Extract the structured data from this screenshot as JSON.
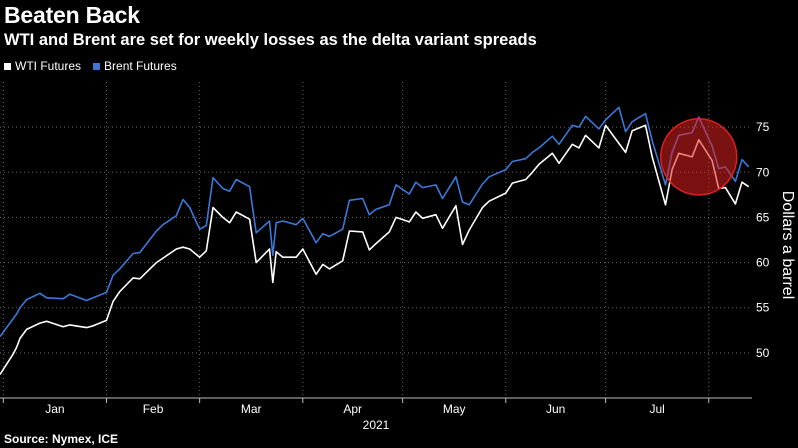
{
  "header": {
    "title": "Beaten Back",
    "subtitle": "WTI and Brent are set for weekly losses as the delta variant spreads"
  },
  "footer": {
    "source": "Source: Nymex, ICE"
  },
  "colors": {
    "wti": "#ffffff",
    "brent": "#3b78d8",
    "background": "#000000",
    "highlight": "#e02020"
  },
  "chart_data": {
    "type": "line",
    "title": "Beaten Back",
    "subtitle": "WTI and Brent are set for weekly losses as the delta variant spreads",
    "ylabel": "Dollars a barrel",
    "xlabel": "2021",
    "ylim": [
      45,
      80
    ],
    "yticks": [
      50,
      55,
      60,
      65,
      70,
      75
    ],
    "x_months": [
      "Jan",
      "Feb",
      "Mar",
      "Apr",
      "May",
      "Jun",
      "Jul"
    ],
    "grid": true,
    "legend_position": "top-left",
    "y_axis_side": "right",
    "highlight": "circle around late-July losses",
    "series": [
      {
        "name": "WTI Futures",
        "color": "#ffffff",
        "x": [
          "2020-12-31",
          "2021-01-04",
          "2021-01-05",
          "2021-01-06",
          "2021-01-08",
          "2021-01-12",
          "2021-01-14",
          "2021-01-19",
          "2021-01-21",
          "2021-01-26",
          "2021-01-28",
          "2021-02-01",
          "2021-02-03",
          "2021-02-05",
          "2021-02-09",
          "2021-02-11",
          "2021-02-16",
          "2021-02-18",
          "2021-02-22",
          "2021-02-24",
          "2021-02-26",
          "2021-03-01",
          "2021-03-03",
          "2021-03-05",
          "2021-03-08",
          "2021-03-10",
          "2021-03-12",
          "2021-03-16",
          "2021-03-18",
          "2021-03-22",
          "2021-03-23",
          "2021-03-24",
          "2021-03-26",
          "2021-03-30",
          "2021-04-01",
          "2021-04-05",
          "2021-04-07",
          "2021-04-09",
          "2021-04-13",
          "2021-04-15",
          "2021-04-19",
          "2021-04-21",
          "2021-04-23",
          "2021-04-27",
          "2021-04-29",
          "2021-05-03",
          "2021-05-05",
          "2021-05-07",
          "2021-05-11",
          "2021-05-13",
          "2021-05-17",
          "2021-05-19",
          "2021-05-21",
          "2021-05-25",
          "2021-05-27",
          "2021-06-01",
          "2021-06-03",
          "2021-06-07",
          "2021-06-09",
          "2021-06-11",
          "2021-06-15",
          "2021-06-17",
          "2021-06-21",
          "2021-06-23",
          "2021-06-25",
          "2021-06-29",
          "2021-07-01",
          "2021-07-05",
          "2021-07-07",
          "2021-07-09",
          "2021-07-13",
          "2021-07-15",
          "2021-07-19",
          "2021-07-21",
          "2021-07-23",
          "2021-07-27",
          "2021-07-29",
          "2021-08-02",
          "2021-08-04",
          "2021-08-06",
          "2021-08-09",
          "2021-08-11",
          "2021-08-13"
        ],
        "values": [
          47.6,
          49.9,
          50.6,
          51.6,
          52.6,
          53.3,
          53.5,
          52.9,
          53.1,
          52.8,
          53.0,
          53.6,
          55.7,
          56.8,
          58.3,
          58.2,
          60.0,
          60.5,
          61.5,
          61.7,
          61.5,
          60.6,
          61.3,
          66.1,
          65.0,
          64.4,
          65.6,
          64.8,
          60.0,
          61.5,
          57.8,
          61.2,
          60.6,
          60.6,
          61.5,
          58.7,
          59.8,
          59.3,
          60.2,
          63.5,
          63.4,
          61.4,
          62.1,
          63.4,
          65.0,
          64.5,
          65.6,
          64.9,
          65.3,
          63.8,
          66.3,
          62.0,
          63.6,
          66.1,
          66.8,
          67.7,
          68.8,
          69.2,
          70.0,
          70.9,
          72.1,
          71.0,
          73.1,
          72.7,
          74.1,
          72.7,
          75.2,
          73.2,
          72.2,
          74.6,
          75.2,
          71.7,
          66.4,
          70.3,
          72.1,
          71.7,
          73.6,
          71.3,
          68.2,
          68.3,
          66.5,
          68.9,
          68.4
        ]
      },
      {
        "name": "Brent Futures",
        "color": "#3b78d8",
        "x": [
          "2020-12-31",
          "2021-01-04",
          "2021-01-05",
          "2021-01-06",
          "2021-01-08",
          "2021-01-12",
          "2021-01-14",
          "2021-01-19",
          "2021-01-21",
          "2021-01-26",
          "2021-01-28",
          "2021-02-01",
          "2021-02-03",
          "2021-02-05",
          "2021-02-09",
          "2021-02-11",
          "2021-02-16",
          "2021-02-18",
          "2021-02-22",
          "2021-02-24",
          "2021-02-26",
          "2021-03-01",
          "2021-03-03",
          "2021-03-05",
          "2021-03-08",
          "2021-03-10",
          "2021-03-12",
          "2021-03-16",
          "2021-03-18",
          "2021-03-22",
          "2021-03-23",
          "2021-03-24",
          "2021-03-26",
          "2021-03-30",
          "2021-04-01",
          "2021-04-05",
          "2021-04-07",
          "2021-04-09",
          "2021-04-13",
          "2021-04-15",
          "2021-04-19",
          "2021-04-21",
          "2021-04-23",
          "2021-04-27",
          "2021-04-29",
          "2021-05-03",
          "2021-05-05",
          "2021-05-07",
          "2021-05-11",
          "2021-05-13",
          "2021-05-17",
          "2021-05-19",
          "2021-05-21",
          "2021-05-25",
          "2021-05-27",
          "2021-06-01",
          "2021-06-03",
          "2021-06-07",
          "2021-06-09",
          "2021-06-11",
          "2021-06-15",
          "2021-06-17",
          "2021-06-21",
          "2021-06-23",
          "2021-06-25",
          "2021-06-29",
          "2021-07-01",
          "2021-07-05",
          "2021-07-07",
          "2021-07-09",
          "2021-07-13",
          "2021-07-15",
          "2021-07-19",
          "2021-07-21",
          "2021-07-23",
          "2021-07-27",
          "2021-07-29",
          "2021-08-02",
          "2021-08-04",
          "2021-08-06",
          "2021-08-09",
          "2021-08-11",
          "2021-08-13"
        ],
        "values": [
          51.8,
          53.8,
          54.3,
          55.0,
          55.9,
          56.6,
          56.1,
          56.0,
          56.5,
          55.8,
          56.1,
          56.7,
          58.6,
          59.3,
          61.0,
          61.1,
          63.5,
          64.2,
          65.2,
          67.0,
          66.1,
          63.7,
          64.1,
          69.4,
          68.2,
          67.9,
          69.2,
          68.4,
          63.3,
          64.6,
          60.8,
          64.4,
          64.6,
          64.2,
          64.9,
          62.2,
          63.2,
          62.9,
          63.7,
          66.9,
          67.1,
          65.3,
          65.9,
          66.4,
          68.6,
          67.6,
          68.9,
          68.3,
          68.6,
          67.1,
          69.5,
          66.7,
          66.4,
          68.7,
          69.5,
          70.3,
          71.2,
          71.5,
          72.2,
          72.7,
          74.0,
          73.1,
          75.2,
          75.0,
          76.2,
          74.8,
          75.8,
          77.2,
          74.5,
          75.6,
          76.5,
          73.5,
          68.6,
          72.2,
          74.1,
          74.4,
          76.1,
          72.9,
          70.4,
          70.6,
          69.0,
          71.4,
          70.6
        ]
      }
    ]
  }
}
